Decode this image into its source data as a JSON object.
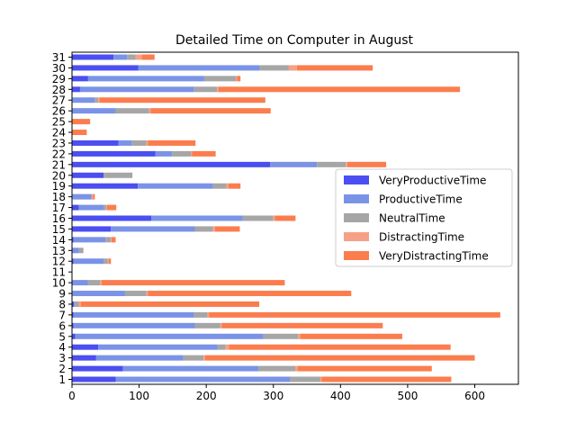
{
  "chart_data": {
    "type": "bar",
    "orientation": "horizontal",
    "stacked": true,
    "title": "Detailed Time on Computer in August",
    "xlabel": "",
    "ylabel": "",
    "xlim": [
      0,
      665
    ],
    "xticks": [
      0,
      100,
      200,
      300,
      400,
      500,
      600
    ],
    "grid": false,
    "legend_position": "right",
    "categories": [
      "1",
      "2",
      "3",
      "4",
      "5",
      "6",
      "7",
      "8",
      "9",
      "10",
      "11",
      "12",
      "13",
      "14",
      "15",
      "16",
      "17",
      "18",
      "19",
      "20",
      "21",
      "22",
      "23",
      "24",
      "25",
      "26",
      "27",
      "28",
      "29",
      "30",
      "31"
    ],
    "series": [
      {
        "name": "VeryProductiveTime",
        "color": "#4b4ef0",
        "values": [
          65,
          76,
          36,
          39,
          5,
          2,
          2,
          3,
          1,
          0,
          0,
          2,
          0,
          2,
          58,
          118,
          10,
          1,
          98,
          47,
          295,
          124,
          69,
          0,
          0,
          0,
          1,
          12,
          24,
          99,
          62
        ]
      },
      {
        "name": "ProductiveTime",
        "color": "#7a93e6",
        "values": [
          260,
          202,
          130,
          178,
          280,
          181,
          180,
          0,
          78,
          24,
          0,
          45,
          10,
          48,
          125,
          136,
          38,
          28,
          112,
          0,
          70,
          25,
          20,
          0,
          0,
          65,
          33,
          170,
          173,
          181,
          20
        ]
      },
      {
        "name": "NeutralTime",
        "color": "#a6a6a6",
        "values": [
          45,
          55,
          30,
          12,
          52,
          38,
          20,
          7,
          32,
          18,
          0,
          6,
          7,
          8,
          27,
          46,
          3,
          1,
          20,
          43,
          43,
          28,
          22,
          0,
          0,
          50,
          5,
          34,
          47,
          43,
          13
        ]
      },
      {
        "name": "DistractingTime",
        "color": "#f6a186",
        "values": [
          2,
          3,
          2,
          5,
          3,
          2,
          2,
          3,
          2,
          2,
          0,
          2,
          0,
          1,
          3,
          2,
          1,
          1,
          3,
          0,
          2,
          2,
          2,
          0,
          0,
          2,
          2,
          2,
          2,
          12,
          9
        ]
      },
      {
        "name": "VeryDistractingTime",
        "color": "#fb7d4e",
        "values": [
          193,
          200,
          402,
          330,
          152,
          240,
          434,
          266,
          303,
          273,
          0,
          3,
          0,
          6,
          37,
          31,
          14,
          3,
          18,
          0,
          58,
          35,
          71,
          22,
          27,
          179,
          247,
          360,
          5,
          113,
          19
        ]
      }
    ]
  }
}
